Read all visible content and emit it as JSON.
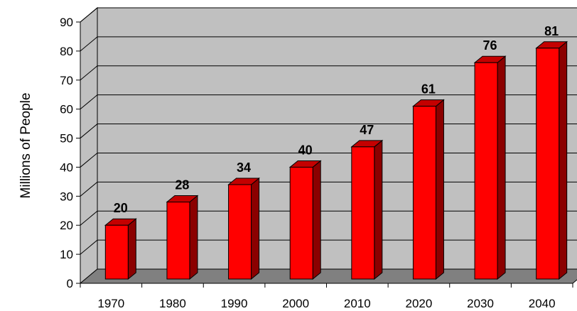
{
  "chart_data": {
    "type": "bar",
    "categories": [
      "1970",
      "1980",
      "1990",
      "2000",
      "2010",
      "2020",
      "2030",
      "2040"
    ],
    "values": [
      20,
      28,
      34,
      40,
      47,
      61,
      76,
      81
    ],
    "title": "",
    "xlabel": "",
    "ylabel": "Millions of People",
    "ylim": [
      0,
      90
    ],
    "yticks": [
      0,
      10,
      20,
      30,
      40,
      50,
      60,
      70,
      80,
      90
    ],
    "grid": true,
    "legend": "none",
    "bar_color": "#ff0000",
    "wall_color": "#c0c0c0",
    "floor_color": "#808080"
  }
}
